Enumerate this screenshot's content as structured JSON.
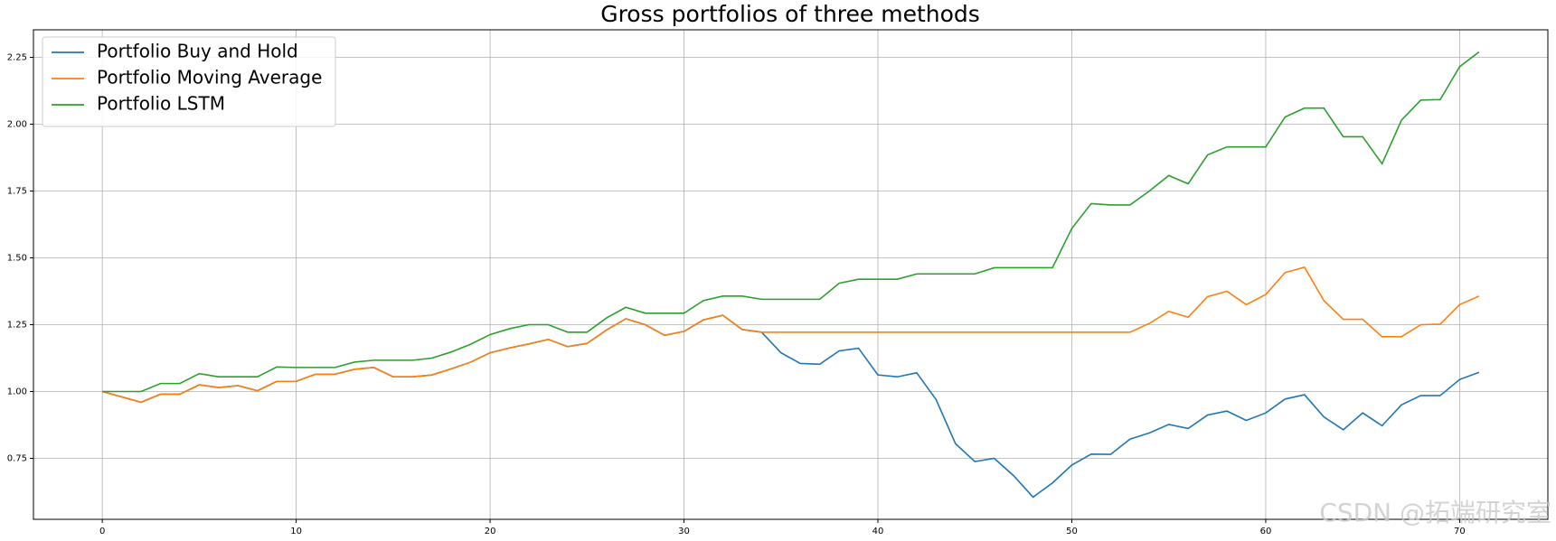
{
  "chart_data": {
    "type": "line",
    "title": "Gross portfolios of three methods",
    "x": [
      0,
      1,
      2,
      3,
      4,
      5,
      6,
      7,
      8,
      9,
      10,
      11,
      12,
      13,
      14,
      15,
      16,
      17,
      18,
      19,
      20,
      21,
      22,
      23,
      24,
      25,
      26,
      27,
      28,
      29,
      30,
      31,
      32,
      33,
      34,
      35,
      36,
      37,
      38,
      39,
      40,
      41,
      42,
      43,
      44,
      45,
      46,
      47,
      48,
      49,
      50,
      51,
      52,
      53,
      54,
      55,
      56,
      57,
      58,
      59,
      60,
      61,
      62,
      63,
      64,
      65,
      66,
      67,
      68,
      69,
      70,
      71
    ],
    "series": [
      {
        "name": "Portfolio Buy and Hold",
        "color": "#1f77b4",
        "values": [
          1.0,
          0.98,
          0.96,
          0.99,
          0.99,
          1.025,
          1.015,
          1.022,
          1.003,
          1.038,
          1.038,
          1.065,
          1.065,
          1.083,
          1.09,
          1.055,
          1.055,
          1.062,
          1.085,
          1.11,
          1.145,
          1.163,
          1.178,
          1.195,
          1.168,
          1.18,
          1.23,
          1.272,
          1.25,
          1.21,
          1.225,
          1.268,
          1.285,
          1.232,
          1.222,
          1.145,
          1.105,
          1.102,
          1.152,
          1.162,
          1.062,
          1.055,
          1.07,
          0.97,
          0.805,
          0.738,
          0.75,
          0.685,
          0.605,
          0.658,
          0.725,
          0.766,
          0.765,
          0.822,
          0.845,
          0.877,
          0.862,
          0.912,
          0.927,
          0.892,
          0.92,
          0.972,
          0.988,
          0.905,
          0.857,
          0.92,
          0.872,
          0.95,
          0.985,
          0.985,
          1.045,
          1.072
        ]
      },
      {
        "name": "Portfolio Moving Average",
        "color": "#ff7f0e",
        "values": [
          1.0,
          0.98,
          0.96,
          0.99,
          0.99,
          1.025,
          1.015,
          1.022,
          1.003,
          1.038,
          1.038,
          1.065,
          1.065,
          1.083,
          1.09,
          1.055,
          1.055,
          1.062,
          1.085,
          1.11,
          1.145,
          1.163,
          1.178,
          1.195,
          1.168,
          1.18,
          1.23,
          1.272,
          1.25,
          1.21,
          1.225,
          1.268,
          1.285,
          1.232,
          1.222,
          1.222,
          1.222,
          1.222,
          1.222,
          1.222,
          1.222,
          1.222,
          1.222,
          1.222,
          1.222,
          1.222,
          1.222,
          1.222,
          1.222,
          1.222,
          1.222,
          1.222,
          1.222,
          1.222,
          1.255,
          1.3,
          1.278,
          1.355,
          1.375,
          1.325,
          1.363,
          1.445,
          1.465,
          1.34,
          1.27,
          1.27,
          1.205,
          1.205,
          1.25,
          1.252,
          1.325,
          1.357
        ]
      },
      {
        "name": "Portfolio LSTM",
        "color": "#2ca02c",
        "values": [
          1.0,
          1.0,
          1.0,
          1.03,
          1.03,
          1.067,
          1.055,
          1.055,
          1.055,
          1.092,
          1.09,
          1.09,
          1.09,
          1.11,
          1.117,
          1.117,
          1.117,
          1.125,
          1.148,
          1.177,
          1.213,
          1.235,
          1.25,
          1.25,
          1.222,
          1.222,
          1.275,
          1.315,
          1.293,
          1.293,
          1.293,
          1.34,
          1.357,
          1.357,
          1.345,
          1.345,
          1.345,
          1.345,
          1.405,
          1.42,
          1.42,
          1.42,
          1.44,
          1.44,
          1.44,
          1.44,
          1.463,
          1.463,
          1.463,
          1.463,
          1.61,
          1.703,
          1.698,
          1.698,
          1.75,
          1.808,
          1.777,
          1.885,
          1.915,
          1.915,
          1.915,
          2.027,
          2.06,
          2.06,
          1.953,
          1.953,
          1.852,
          2.015,
          2.09,
          2.092,
          2.215,
          2.27
        ]
      }
    ],
    "xlim": [
      -3.55,
      74.55
    ],
    "ylim": [
      0.522,
      2.353
    ],
    "xticks": [
      0,
      10,
      20,
      30,
      40,
      50,
      60,
      70
    ],
    "yticks": [
      0.75,
      {
        "value": 1.0,
        "label": "1.00"
      },
      1.25,
      {
        "value": 1.5,
        "label": "1.50"
      },
      1.75,
      {
        "value": 2.0,
        "label": "2.00"
      },
      2.25
    ],
    "grid": true,
    "legend": "upper left",
    "watermark": "CSDN @拓端研究室"
  }
}
